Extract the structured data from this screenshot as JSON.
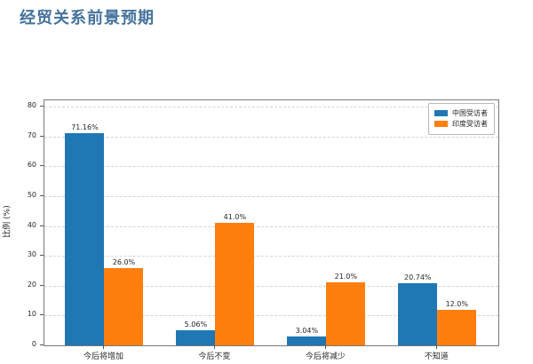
{
  "page": {
    "title": "经贸关系前景预期"
  },
  "colors": {
    "title": "#44739c",
    "china_blue": "#1f77b4",
    "india_orange": "#ff7f0e"
  },
  "chart_data": {
    "type": "bar",
    "title": "经贸关系前景预期",
    "categories": [
      "今后将增加",
      "今后不变",
      "今后将减少",
      "不知道"
    ],
    "series": [
      {
        "name": "中国受访者",
        "color": "#1f77b4",
        "values": [
          71.16,
          5.06,
          3.04,
          20.74
        ],
        "labels": [
          "71.16%",
          "5.06%",
          "3.04%",
          "20.74%"
        ]
      },
      {
        "name": "印度受访者",
        "color": "#ff7f0e",
        "values": [
          26.0,
          41.0,
          21.0,
          12.0
        ],
        "labels": [
          "26.0%",
          "41.0%",
          "21.0%",
          "12.0%"
        ]
      }
    ],
    "xlabel": "",
    "ylabel": "比例 (%)",
    "ylim": [
      0,
      80
    ],
    "yticks": [
      0,
      10,
      20,
      30,
      40,
      50,
      60,
      70,
      80
    ],
    "grid": "horizontal dashed",
    "legend_position": "upper right"
  }
}
